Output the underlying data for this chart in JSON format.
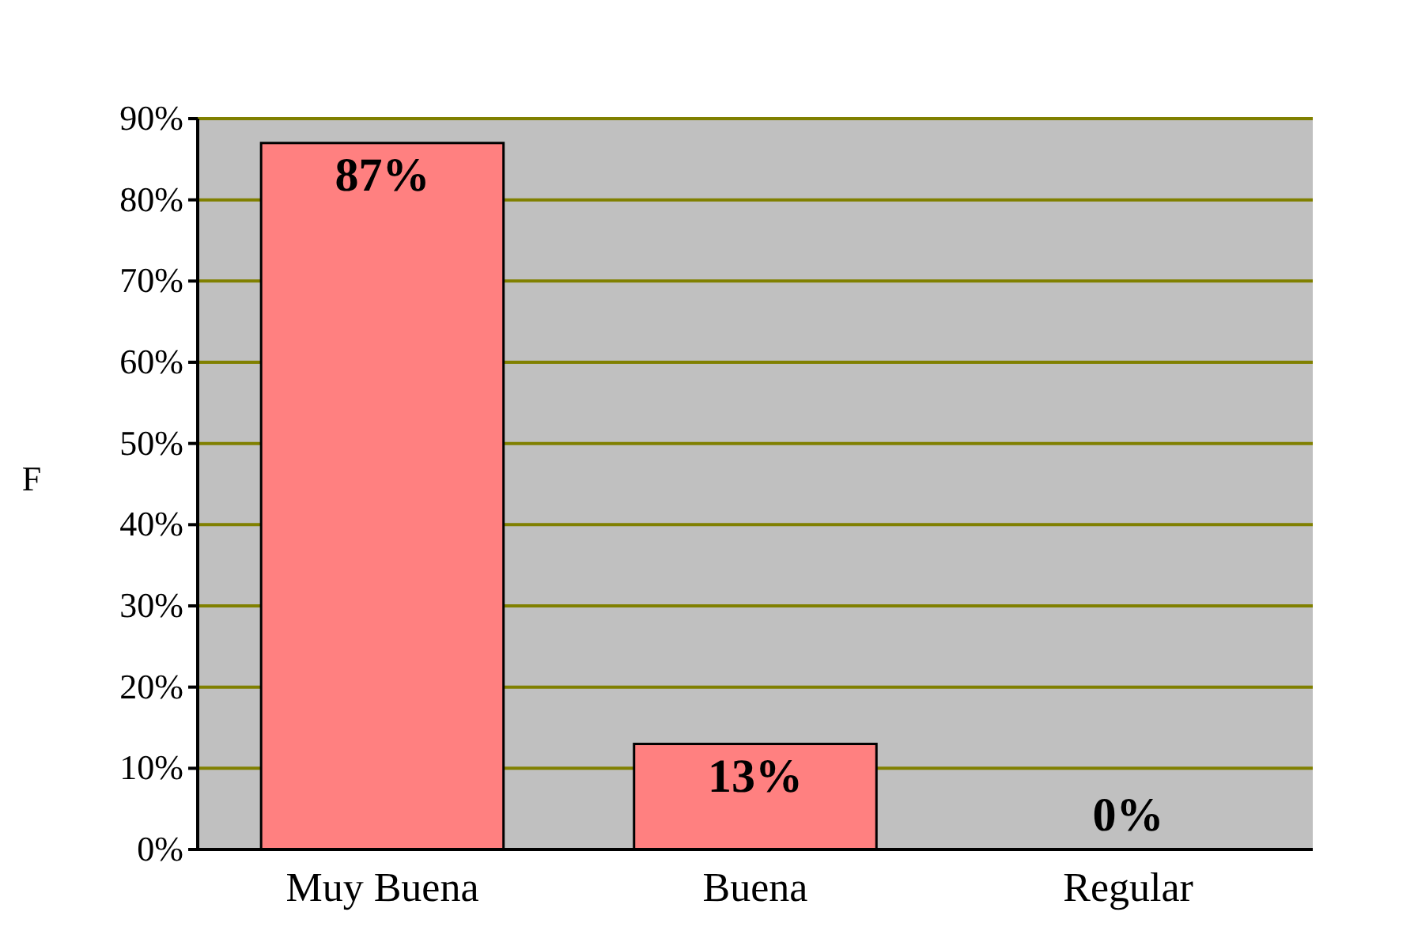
{
  "chart_data": {
    "type": "bar",
    "ylabel": "F",
    "categories": [
      "Muy Buena",
      "Buena",
      "Regular"
    ],
    "values": [
      87,
      13,
      0
    ],
    "color": "#ff8080",
    "value_labels": [
      "87%",
      "13%",
      "0%"
    ],
    "ylim": [
      0,
      90
    ],
    "yticks": [
      {
        "value": 0,
        "label": "0%"
      },
      {
        "value": 10,
        "label": "10%"
      },
      {
        "value": 20,
        "label": "20%"
      },
      {
        "value": 30,
        "label": "30%"
      },
      {
        "value": 40,
        "label": "40%"
      },
      {
        "value": 50,
        "label": "50%"
      },
      {
        "value": 60,
        "label": "60%"
      },
      {
        "value": 70,
        "label": "70%"
      },
      {
        "value": 80,
        "label": "80%"
      },
      {
        "value": 90,
        "label": "90%"
      }
    ],
    "grid": "y"
  }
}
